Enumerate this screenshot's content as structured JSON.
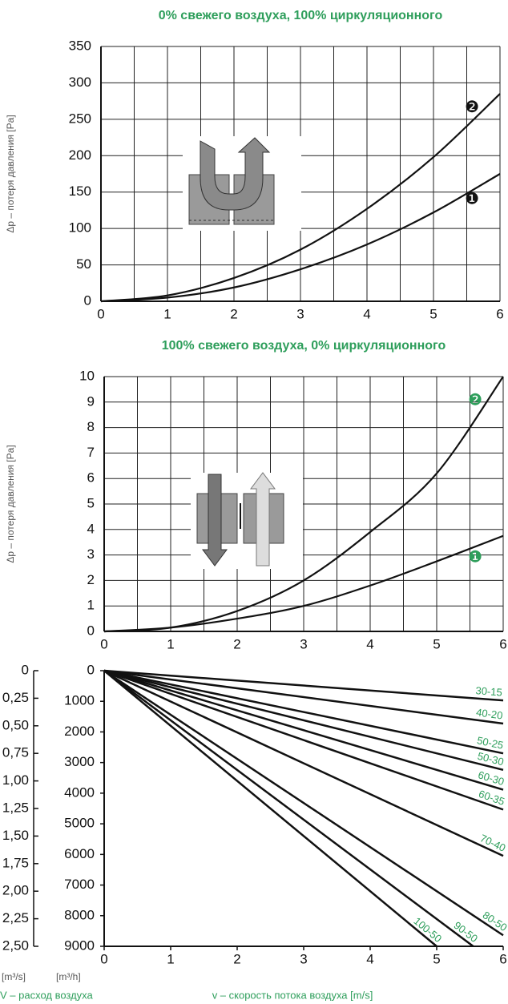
{
  "chart_data": [
    {
      "type": "line",
      "title": "0% свежего воздуха, 100% циркуляционного",
      "ylabel": "Δp – потеря давления [Pa]",
      "x": [
        0,
        1,
        2,
        3,
        4,
        5,
        6
      ],
      "xlim": [
        0,
        6
      ],
      "ylim": [
        0,
        350
      ],
      "xticks": [
        0,
        1,
        2,
        3,
        4,
        5,
        6
      ],
      "yticks": [
        0,
        50,
        100,
        150,
        200,
        250,
        300,
        350
      ],
      "x_minor_grid": [
        0.5,
        1.5,
        2.5,
        3.5,
        4.5,
        5.5
      ],
      "grid": true,
      "label_color": "#111111",
      "series": [
        {
          "name": "❷",
          "color": "#111111",
          "values": [
            0,
            8,
            32,
            71,
            127,
            198,
            285
          ]
        },
        {
          "name": "❶",
          "color": "#111111",
          "values": [
            0,
            5,
            19,
            44,
            78,
            122,
            175
          ]
        }
      ]
    },
    {
      "type": "line",
      "title": "100% свежего воздуха, 0% циркуляционного",
      "ylabel": "Δp – потеря давления [Pa]",
      "x": [
        0,
        1,
        2,
        3,
        4,
        5,
        6
      ],
      "xlim": [
        0,
        6
      ],
      "ylim": [
        0,
        10
      ],
      "xticks": [
        0,
        1,
        2,
        3,
        4,
        5,
        6
      ],
      "yticks": [
        0,
        1,
        2,
        3,
        4,
        5,
        6,
        7,
        8,
        9,
        10
      ],
      "x_minor_grid": [
        0.5,
        1.5,
        2.5,
        3.5,
        4.5,
        5.5
      ],
      "grid": true,
      "label_color": "#2e9e5b",
      "series": [
        {
          "name": "❷",
          "color": "#111111",
          "values": [
            0,
            0.15,
            0.8,
            2.0,
            3.9,
            6.2,
            10
          ]
        },
        {
          "name": "❶",
          "color": "#111111",
          "values": [
            0,
            0.15,
            0.5,
            1.0,
            1.8,
            2.75,
            3.75
          ]
        }
      ]
    },
    {
      "type": "fan",
      "xlabel": "v – скорость потока воздуха [m/s]",
      "y2label": "V – расход воздуха",
      "yunit": "[m³/h]",
      "y2unit": "[m³/s]",
      "xlim": [
        0,
        6
      ],
      "ylim": [
        9000,
        0
      ],
      "y2lim": [
        2.5,
        0
      ],
      "xticks": [
        0,
        1,
        2,
        3,
        4,
        5,
        6
      ],
      "yticks": [
        0,
        1000,
        2000,
        3000,
        4000,
        5000,
        6000,
        7000,
        8000,
        9000
      ],
      "y2ticks": [
        0,
        {
          "value": 0.25,
          "label": "0,25"
        },
        {
          "value": 0.5,
          "label": "0,50"
        },
        {
          "value": 0.75,
          "label": "0,75"
        },
        {
          "value": 1.0,
          "label": "1,00"
        },
        {
          "value": 1.25,
          "label": "1,25"
        },
        {
          "value": 1.5,
          "label": "1,50"
        },
        {
          "value": 1.75,
          "label": "1,75"
        },
        {
          "value": 2.0,
          "label": "2,00"
        },
        {
          "value": 2.25,
          "label": "2,25"
        },
        {
          "value": 2.5,
          "label": "2,50"
        }
      ],
      "label_color": "#2e9e5b",
      "series": [
        {
          "name": "30-15",
          "color": "#111111",
          "x": [
            0,
            6
          ],
          "values": [
            0,
            972
          ]
        },
        {
          "name": "40-20",
          "color": "#111111",
          "x": [
            0,
            6
          ],
          "values": [
            0,
            1728
          ]
        },
        {
          "name": "50-25",
          "color": "#111111",
          "x": [
            0,
            6
          ],
          "values": [
            0,
            2700
          ]
        },
        {
          "name": "50-30",
          "color": "#111111",
          "x": [
            0,
            6
          ],
          "values": [
            0,
            3240
          ]
        },
        {
          "name": "60-30",
          "color": "#111111",
          "x": [
            0,
            6
          ],
          "values": [
            0,
            3888
          ]
        },
        {
          "name": "60-35",
          "color": "#111111",
          "x": [
            0,
            6
          ],
          "values": [
            0,
            4536
          ]
        },
        {
          "name": "70-40",
          "color": "#111111",
          "x": [
            0,
            6
          ],
          "values": [
            0,
            6048
          ]
        },
        {
          "name": "80-50",
          "color": "#111111",
          "x": [
            0,
            6
          ],
          "values": [
            0,
            8640
          ]
        },
        {
          "name": "90-50",
          "color": "#111111",
          "x": [
            0,
            5.55
          ],
          "values": [
            0,
            9000
          ]
        },
        {
          "name": "100-50",
          "color": "#111111",
          "x": [
            0,
            5.0
          ],
          "values": [
            0,
            9000
          ]
        }
      ]
    }
  ]
}
